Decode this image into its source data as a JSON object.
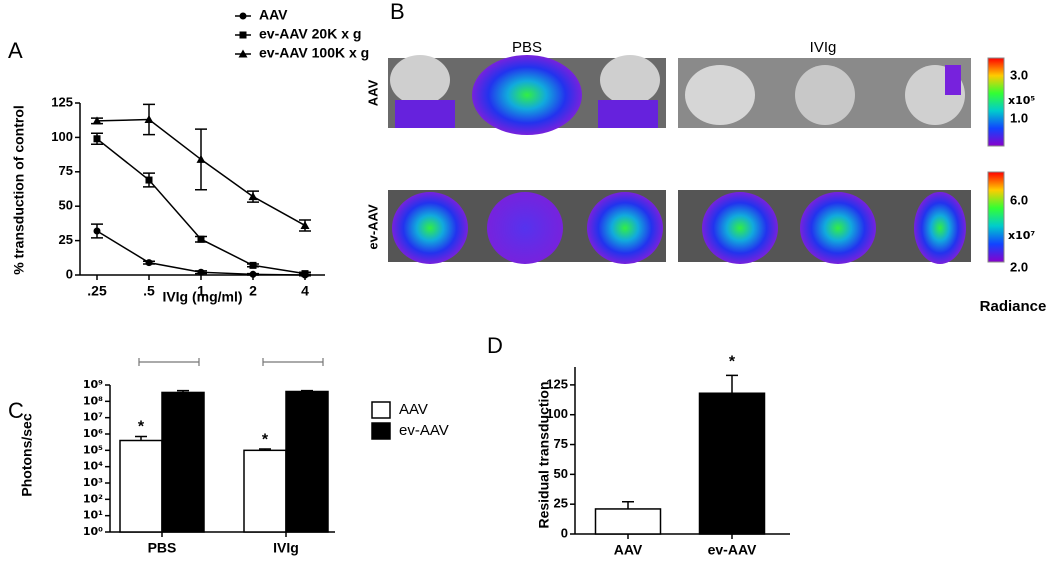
{
  "chart_data": [
    {
      "type": "line",
      "label": "A",
      "x_label": "IVIg (mg/ml)",
      "y_label": "% transduction of control",
      "categories": [
        ".25",
        ".5",
        "1",
        "2",
        "4"
      ],
      "ylim": [
        0,
        125
      ],
      "yticks": [
        0,
        25,
        50,
        75,
        100,
        125
      ],
      "series": [
        {
          "name": "AAV",
          "color": "#000000",
          "marker": "circle",
          "values": [
            32,
            9,
            2,
            0.5,
            0
          ],
          "errors": [
            5,
            1,
            1,
            0.5,
            0.5
          ]
        },
        {
          "name": "ev-AAV 20K x g",
          "color": "#000000",
          "marker": "square",
          "values": [
            99,
            69,
            26,
            7,
            1
          ],
          "errors": [
            4,
            5,
            2,
            1,
            1
          ]
        },
        {
          "name": "ev-AAV 100K x g",
          "color": "#000000",
          "marker": "triangle",
          "values": [
            112,
            113,
            84,
            57,
            36
          ],
          "errors": [
            2,
            11,
            22,
            4,
            4
          ]
        }
      ]
    },
    {
      "type": "bar",
      "label": "C",
      "y_label": "Photons/sec",
      "log_scale": true,
      "categories": [
        "PBS",
        "IVIg"
      ],
      "ylim": [
        1,
        1000000000
      ],
      "yticks": [
        {
          "value": 1,
          "label": "10⁰"
        },
        {
          "value": 10,
          "label": "10¹"
        },
        {
          "value": 100,
          "label": "10²"
        },
        {
          "value": 1000,
          "label": "10³"
        },
        {
          "value": 10000,
          "label": "10⁴"
        },
        {
          "value": 100000,
          "label": "10⁵"
        },
        {
          "value": 1000000,
          "label": "10⁶"
        },
        {
          "value": 10000000,
          "label": "10⁷"
        },
        {
          "value": 100000000,
          "label": "10⁸"
        },
        {
          "value": 1000000000,
          "label": "10⁹"
        }
      ],
      "series": [
        {
          "name": "AAV",
          "color": "#ffffff",
          "values": [
            400000,
            100000
          ],
          "errors": [
            300000,
            20000
          ]
        },
        {
          "name": "ev-AAV",
          "color": "#000000",
          "values": [
            350000000,
            400000000
          ],
          "errors": [
            100000000,
            50000000
          ]
        }
      ],
      "annotations": [
        "*",
        "*"
      ]
    },
    {
      "type": "bar",
      "label": "D",
      "y_label": "Residual transduction",
      "categories": [
        "AAV",
        "ev-AAV"
      ],
      "ylim": [
        0,
        140
      ],
      "yticks": [
        0,
        25,
        50,
        75,
        100,
        125
      ],
      "values": [
        21,
        118
      ],
      "errors": [
        6,
        15
      ],
      "colors": [
        "#ffffff",
        "#000000"
      ],
      "annotations": [
        "*"
      ]
    }
  ],
  "imaging": {
    "label": "B",
    "columns": [
      "PBS",
      "IVIg"
    ],
    "rows": [
      "AAV",
      "ev-AAV"
    ],
    "colorbars": [
      [
        "3.0",
        "x10⁵",
        "1.0"
      ],
      [
        "6.0",
        "x10⁷",
        "2.0"
      ]
    ],
    "colorbar_title": "Radiance"
  }
}
